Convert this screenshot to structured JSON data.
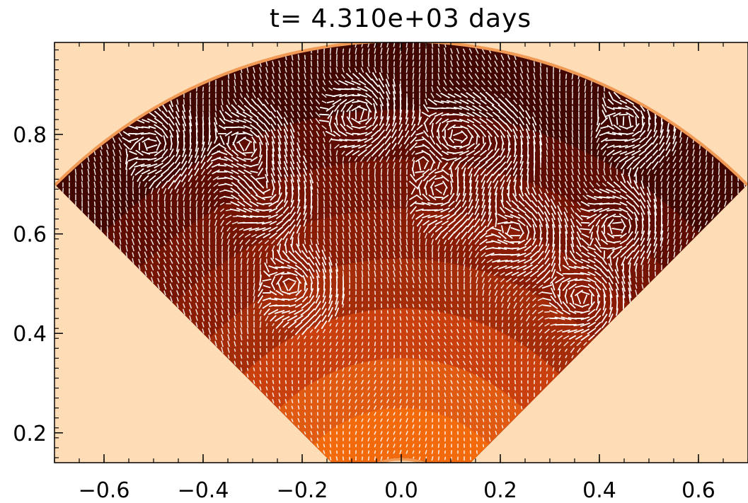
{
  "chart_data": {
    "type": "heatmap",
    "title": "t= 4.310e+03 days",
    "xlabel": "",
    "ylabel": "",
    "xlim": [
      -0.7,
      0.7
    ],
    "ylim": [
      0.14,
      0.985
    ],
    "x_ticks": [
      -0.6,
      -0.4,
      -0.2,
      0.0,
      0.2,
      0.4,
      0.6
    ],
    "x_tick_labels": [
      "−0.6",
      "−0.4",
      "−0.2",
      "0.0",
      "0.2",
      "0.4",
      "0.6"
    ],
    "y_ticks": [
      0.2,
      0.4,
      0.6,
      0.8
    ],
    "y_tick_labels": [
      "0.2",
      "0.4",
      "0.6",
      "0.8"
    ],
    "wedge": {
      "inner_radius": 0.15,
      "outer_radius": 0.985,
      "half_angle_deg": 45
    },
    "radial_color_bands": [
      {
        "r_max": 0.25,
        "color": "#f26a0c"
      },
      {
        "r_max": 0.35,
        "color": "#e05a12"
      },
      {
        "r_max": 0.45,
        "color": "#c9400e"
      },
      {
        "r_max": 0.55,
        "color": "#a52c08"
      },
      {
        "r_max": 0.65,
        "color": "#8a1c04"
      },
      {
        "r_max": 0.75,
        "color": "#751402"
      },
      {
        "r_max": 0.85,
        "color": "#5e0c01"
      },
      {
        "r_max": 0.985,
        "color": "#420600"
      }
    ],
    "background_color": "#fddcb6",
    "vector_color": "#ffffff",
    "vortex_centers": [
      [
        -0.48,
        0.78
      ],
      [
        -0.3,
        0.78
      ],
      [
        -0.26,
        0.68
      ],
      [
        -0.2,
        0.49
      ],
      [
        -0.07,
        0.84
      ],
      [
        0.1,
        0.68
      ],
      [
        0.12,
        0.8
      ],
      [
        0.2,
        0.78
      ],
      [
        0.25,
        0.6
      ],
      [
        0.38,
        0.47
      ],
      [
        0.45,
        0.62
      ],
      [
        0.48,
        0.82
      ]
    ],
    "grid": false
  }
}
